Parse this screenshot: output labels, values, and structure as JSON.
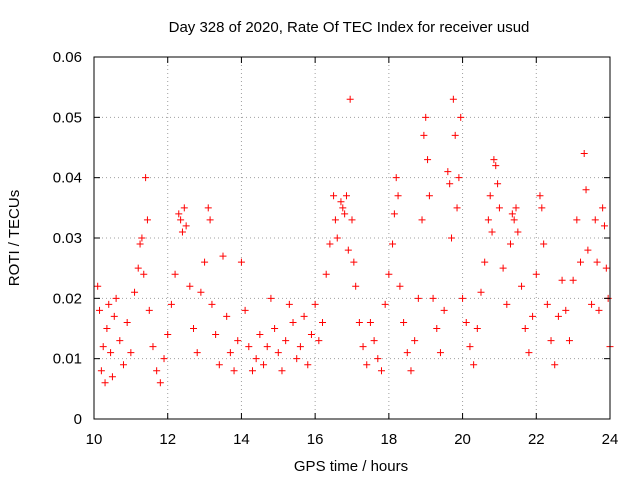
{
  "chart_data": {
    "type": "scatter",
    "title": "Day 328 of 2020, Rate Of TEC Index for receiver usud",
    "xlabel": "GPS time / hours",
    "ylabel": "ROTI / TECUs",
    "xlim": [
      10,
      24
    ],
    "ylim": [
      0,
      0.06
    ],
    "x_ticks": [
      10,
      12,
      14,
      16,
      18,
      20,
      22,
      24
    ],
    "x_tick_labels": [
      "10",
      "12",
      "14",
      "16",
      "18",
      "20",
      "22",
      "24"
    ],
    "y_ticks": [
      0,
      0.01,
      0.02,
      0.03,
      0.04,
      0.05,
      0.06
    ],
    "y_tick_labels": [
      "0",
      "0.01",
      "0.02",
      "0.03",
      "0.04",
      "0.05",
      "0.06"
    ],
    "grid": true,
    "marker": "plus",
    "marker_color": "#ff0000",
    "series": [
      {
        "points": [
          [
            10.1,
            0.022
          ],
          [
            10.15,
            0.018
          ],
          [
            10.2,
            0.008
          ],
          [
            10.25,
            0.012
          ],
          [
            10.3,
            0.006
          ],
          [
            10.35,
            0.015
          ],
          [
            10.4,
            0.019
          ],
          [
            10.45,
            0.011
          ],
          [
            10.5,
            0.007
          ],
          [
            10.55,
            0.017
          ],
          [
            10.6,
            0.02
          ],
          [
            10.7,
            0.013
          ],
          [
            10.8,
            0.009
          ],
          [
            10.9,
            0.016
          ],
          [
            11.0,
            0.011
          ],
          [
            11.1,
            0.021
          ],
          [
            11.2,
            0.025
          ],
          [
            11.25,
            0.029
          ],
          [
            11.3,
            0.03
          ],
          [
            11.35,
            0.024
          ],
          [
            11.4,
            0.04
          ],
          [
            11.45,
            0.033
          ],
          [
            11.5,
            0.018
          ],
          [
            11.6,
            0.012
          ],
          [
            11.7,
            0.008
          ],
          [
            11.8,
            0.006
          ],
          [
            11.9,
            0.01
          ],
          [
            12.0,
            0.014
          ],
          [
            12.1,
            0.019
          ],
          [
            12.2,
            0.024
          ],
          [
            12.3,
            0.034
          ],
          [
            12.35,
            0.033
          ],
          [
            12.4,
            0.031
          ],
          [
            12.45,
            0.035
          ],
          [
            12.5,
            0.032
          ],
          [
            12.6,
            0.022
          ],
          [
            12.7,
            0.015
          ],
          [
            12.8,
            0.011
          ],
          [
            12.9,
            0.021
          ],
          [
            13.0,
            0.026
          ],
          [
            13.1,
            0.035
          ],
          [
            13.15,
            0.033
          ],
          [
            13.2,
            0.019
          ],
          [
            13.3,
            0.014
          ],
          [
            13.4,
            0.009
          ],
          [
            13.5,
            0.027
          ],
          [
            13.6,
            0.017
          ],
          [
            13.7,
            0.011
          ],
          [
            13.8,
            0.008
          ],
          [
            13.9,
            0.013
          ],
          [
            14.0,
            0.026
          ],
          [
            14.1,
            0.018
          ],
          [
            14.2,
            0.012
          ],
          [
            14.3,
            0.008
          ],
          [
            14.4,
            0.01
          ],
          [
            14.5,
            0.014
          ],
          [
            14.6,
            0.009
          ],
          [
            14.7,
            0.012
          ],
          [
            14.8,
            0.02
          ],
          [
            14.9,
            0.015
          ],
          [
            15.0,
            0.011
          ],
          [
            15.1,
            0.008
          ],
          [
            15.2,
            0.013
          ],
          [
            15.3,
            0.019
          ],
          [
            15.4,
            0.016
          ],
          [
            15.5,
            0.01
          ],
          [
            15.6,
            0.012
          ],
          [
            15.7,
            0.017
          ],
          [
            15.8,
            0.009
          ],
          [
            15.9,
            0.014
          ],
          [
            16.0,
            0.019
          ],
          [
            16.1,
            0.013
          ],
          [
            16.2,
            0.016
          ],
          [
            16.3,
            0.024
          ],
          [
            16.4,
            0.029
          ],
          [
            16.5,
            0.037
          ],
          [
            16.55,
            0.033
          ],
          [
            16.6,
            0.03
          ],
          [
            16.7,
            0.036
          ],
          [
            16.75,
            0.035
          ],
          [
            16.8,
            0.034
          ],
          [
            16.85,
            0.037
          ],
          [
            16.9,
            0.028
          ],
          [
            16.95,
            0.053
          ],
          [
            17.0,
            0.033
          ],
          [
            17.05,
            0.026
          ],
          [
            17.1,
            0.022
          ],
          [
            17.2,
            0.016
          ],
          [
            17.3,
            0.012
          ],
          [
            17.4,
            0.009
          ],
          [
            17.5,
            0.016
          ],
          [
            17.6,
            0.013
          ],
          [
            17.7,
            0.01
          ],
          [
            17.8,
            0.008
          ],
          [
            17.9,
            0.019
          ],
          [
            18.0,
            0.024
          ],
          [
            18.1,
            0.029
          ],
          [
            18.15,
            0.034
          ],
          [
            18.2,
            0.04
          ],
          [
            18.25,
            0.037
          ],
          [
            18.3,
            0.022
          ],
          [
            18.4,
            0.016
          ],
          [
            18.5,
            0.011
          ],
          [
            18.6,
            0.008
          ],
          [
            18.7,
            0.013
          ],
          [
            18.8,
            0.02
          ],
          [
            18.9,
            0.033
          ],
          [
            18.95,
            0.047
          ],
          [
            19.0,
            0.05
          ],
          [
            19.05,
            0.043
          ],
          [
            19.1,
            0.037
          ],
          [
            19.2,
            0.02
          ],
          [
            19.3,
            0.015
          ],
          [
            19.4,
            0.011
          ],
          [
            19.5,
            0.018
          ],
          [
            19.6,
            0.041
          ],
          [
            19.65,
            0.039
          ],
          [
            19.7,
            0.03
          ],
          [
            19.75,
            0.053
          ],
          [
            19.8,
            0.047
          ],
          [
            19.85,
            0.035
          ],
          [
            19.9,
            0.04
          ],
          [
            19.95,
            0.05
          ],
          [
            20.0,
            0.02
          ],
          [
            20.1,
            0.016
          ],
          [
            20.2,
            0.012
          ],
          [
            20.3,
            0.009
          ],
          [
            20.4,
            0.015
          ],
          [
            20.5,
            0.021
          ],
          [
            20.6,
            0.026
          ],
          [
            20.7,
            0.033
          ],
          [
            20.75,
            0.037
          ],
          [
            20.8,
            0.031
          ],
          [
            20.85,
            0.043
          ],
          [
            20.9,
            0.042
          ],
          [
            20.95,
            0.039
          ],
          [
            21.0,
            0.035
          ],
          [
            21.1,
            0.025
          ],
          [
            21.2,
            0.019
          ],
          [
            21.3,
            0.029
          ],
          [
            21.35,
            0.034
          ],
          [
            21.4,
            0.033
          ],
          [
            21.45,
            0.035
          ],
          [
            21.5,
            0.031
          ],
          [
            21.6,
            0.022
          ],
          [
            21.7,
            0.015
          ],
          [
            21.8,
            0.011
          ],
          [
            21.9,
            0.017
          ],
          [
            22.0,
            0.024
          ],
          [
            22.1,
            0.037
          ],
          [
            22.15,
            0.035
          ],
          [
            22.2,
            0.029
          ],
          [
            22.3,
            0.019
          ],
          [
            22.4,
            0.013
          ],
          [
            22.5,
            0.009
          ],
          [
            22.6,
            0.017
          ],
          [
            22.7,
            0.023
          ],
          [
            22.8,
            0.018
          ],
          [
            22.9,
            0.013
          ],
          [
            23.0,
            0.023
          ],
          [
            23.1,
            0.033
          ],
          [
            23.2,
            0.026
          ],
          [
            23.3,
            0.044
          ],
          [
            23.35,
            0.038
          ],
          [
            23.4,
            0.028
          ],
          [
            23.5,
            0.019
          ],
          [
            23.6,
            0.033
          ],
          [
            23.65,
            0.026
          ],
          [
            23.7,
            0.018
          ],
          [
            23.8,
            0.035
          ],
          [
            23.85,
            0.032
          ],
          [
            23.9,
            0.025
          ],
          [
            23.95,
            0.02
          ],
          [
            24.0,
            0.012
          ]
        ]
      }
    ]
  }
}
